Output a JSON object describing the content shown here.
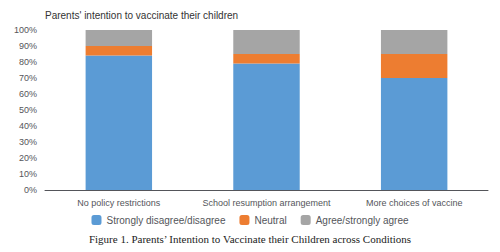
{
  "chart_data": {
    "type": "bar",
    "stacked": true,
    "title": "Figure 1. Parents’ Intention to Vaccinate their Children across Conditions",
    "ylabel": "Parents' intention to vaccinate their children",
    "categories": [
      "No policy restrictions",
      "School resumption arrangement",
      "More choices of vaccine"
    ],
    "series": [
      {
        "name": "Strongly disagree/disagree",
        "color": "#5B9BD5",
        "values": [
          84,
          79,
          70
        ]
      },
      {
        "name": "Neutral",
        "color": "#ED7D31",
        "values": [
          6,
          6,
          15
        ]
      },
      {
        "name": "Agree/strongly agree",
        "color": "#A5A5A5",
        "values": [
          10,
          15,
          15
        ]
      }
    ],
    "ylim": [
      0,
      100
    ],
    "yticks": [
      {
        "value": 0,
        "label": "0%"
      },
      {
        "value": 10,
        "label": "10%"
      },
      {
        "value": 20,
        "label": "20%"
      },
      {
        "value": 30,
        "label": "30%"
      },
      {
        "value": 40,
        "label": "40%"
      },
      {
        "value": 50,
        "label": "50%"
      },
      {
        "value": 60,
        "label": "60%"
      },
      {
        "value": 70,
        "label": "70%"
      },
      {
        "value": 80,
        "label": "80%"
      },
      {
        "value": 90,
        "label": "90%"
      },
      {
        "value": 100,
        "label": "100%"
      }
    ],
    "grid": false,
    "legend": "bottom"
  }
}
